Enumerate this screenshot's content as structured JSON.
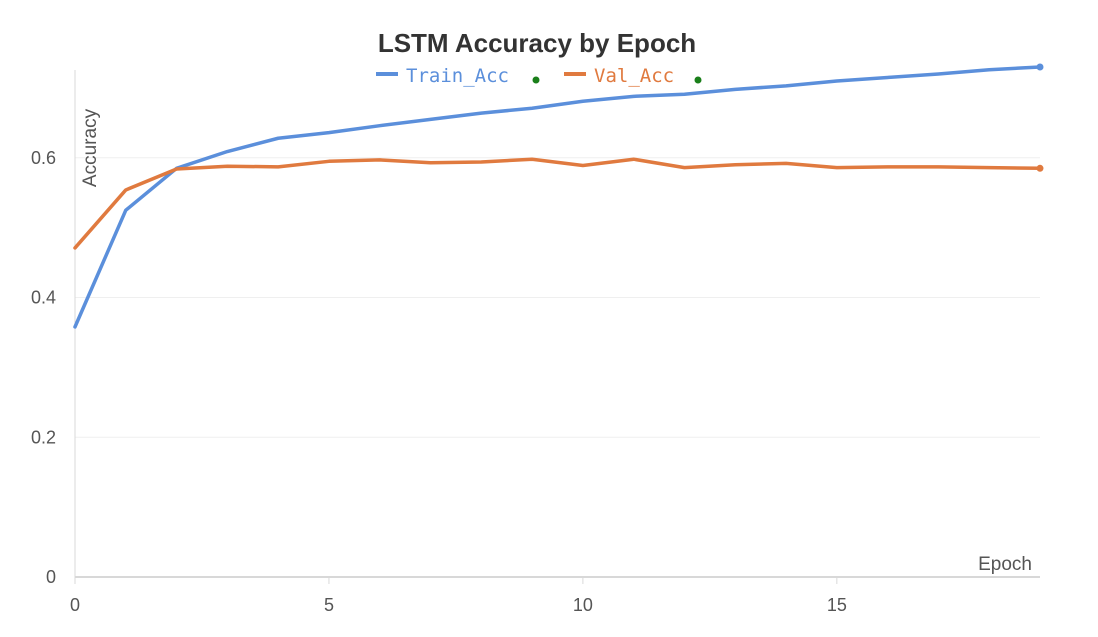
{
  "chart_data": {
    "type": "line",
    "title": "LSTM Accuracy by Epoch",
    "xlabel": "Epoch",
    "ylabel": "Accuracy",
    "xlim": [
      0,
      19
    ],
    "ylim": [
      0,
      0.74
    ],
    "x_ticks": [
      0,
      5,
      10,
      15
    ],
    "y_ticks": [
      0,
      0.2,
      0.4,
      0.6
    ],
    "x_tick_labels": [
      "0",
      "5",
      "10",
      "15"
    ],
    "y_tick_labels": [
      "0",
      "0.2",
      "0.4",
      "0.6"
    ],
    "grid": "horizontal",
    "legend_position": "top-center",
    "x": [
      0,
      1,
      2,
      3,
      4,
      5,
      6,
      7,
      8,
      9,
      10,
      11,
      12,
      13,
      14,
      15,
      16,
      17,
      18,
      19
    ],
    "series": [
      {
        "name": "Train_Acc",
        "color": "#5b8fdb",
        "values": [
          0.358,
          0.525,
          0.585,
          0.609,
          0.628,
          0.636,
          0.646,
          0.655,
          0.664,
          0.671,
          0.681,
          0.688,
          0.691,
          0.698,
          0.703,
          0.71,
          0.715,
          0.72,
          0.726,
          0.73
        ]
      },
      {
        "name": "Val_Acc",
        "color": "#e07a3f",
        "values": [
          0.471,
          0.554,
          0.584,
          0.588,
          0.587,
          0.595,
          0.597,
          0.593,
          0.594,
          0.598,
          0.589,
          0.598,
          0.586,
          0.59,
          0.592,
          0.586,
          0.587,
          0.587,
          0.586,
          0.585
        ]
      }
    ]
  }
}
